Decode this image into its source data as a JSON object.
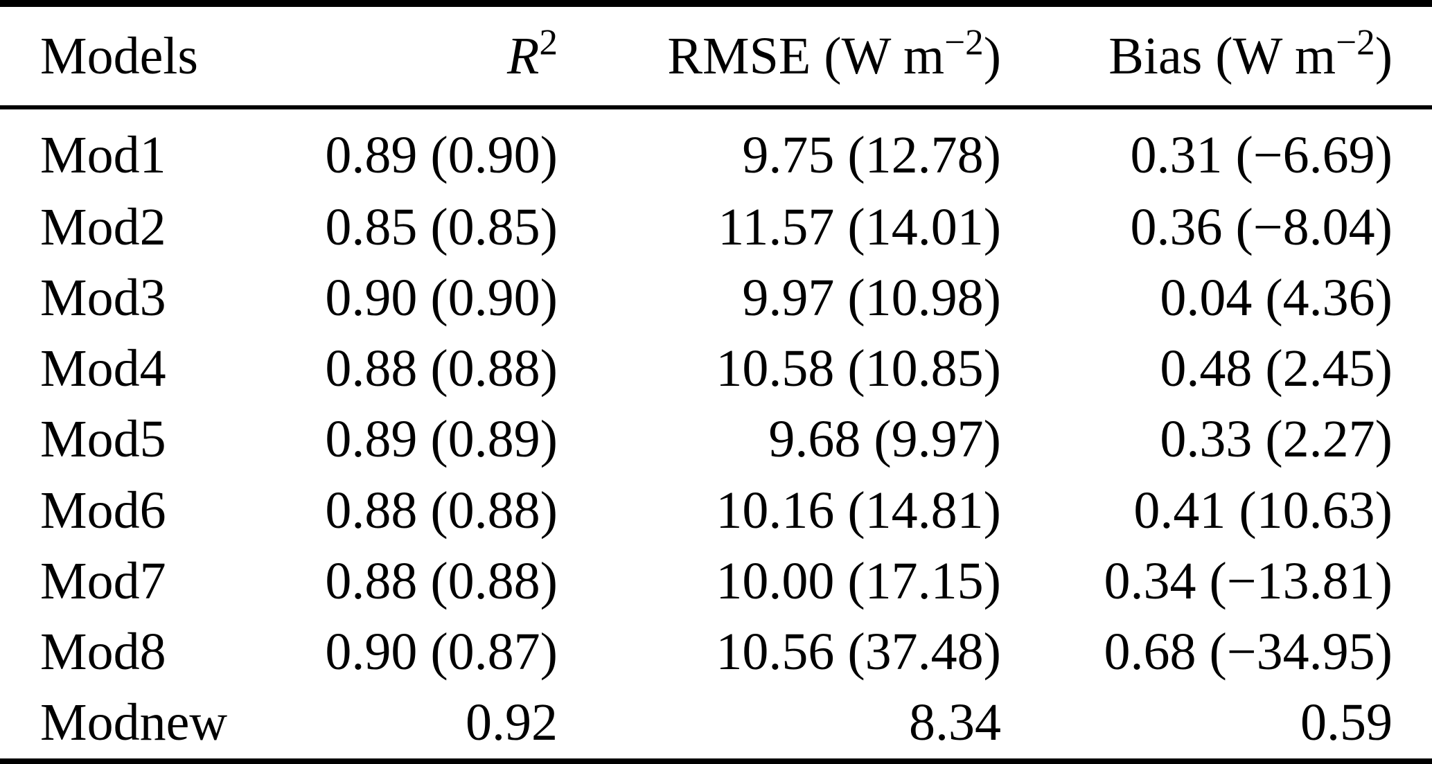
{
  "meta": {
    "kind": "paper-table",
    "colors": {
      "background": "#ffffff",
      "text": "#000000",
      "rule": "#000000"
    }
  },
  "table": {
    "columns": [
      {
        "id": "models",
        "label": "Models"
      },
      {
        "id": "r2",
        "label_base": "R",
        "label_sup": "2"
      },
      {
        "id": "rmse",
        "label_pre": "RMSE (W m",
        "label_sup": "−2",
        "label_post": ")"
      },
      {
        "id": "bias",
        "label_pre": "Bias (W m",
        "label_sup": "−2",
        "label_post": ")"
      }
    ],
    "rows": [
      {
        "model": "Mod1",
        "r2": "0.89 (0.90)",
        "rmse": "9.75 (12.78)",
        "bias": "0.31 (−6.69)"
      },
      {
        "model": "Mod2",
        "r2": "0.85 (0.85)",
        "rmse": "11.57 (14.01)",
        "bias": "0.36 (−8.04)"
      },
      {
        "model": "Mod3",
        "r2": "0.90 (0.90)",
        "rmse": "9.97 (10.98)",
        "bias": "0.04 (4.36)"
      },
      {
        "model": "Mod4",
        "r2": "0.88 (0.88)",
        "rmse": "10.58 (10.85)",
        "bias": "0.48 (2.45)"
      },
      {
        "model": "Mod5",
        "r2": "0.89 (0.89)",
        "rmse": "9.68 (9.97)",
        "bias": "0.33 (2.27)"
      },
      {
        "model": "Mod6",
        "r2": "0.88 (0.88)",
        "rmse": "10.16 (14.81)",
        "bias": "0.41 (10.63)"
      },
      {
        "model": "Mod7",
        "r2": "0.88 (0.88)",
        "rmse": "10.00 (17.15)",
        "bias": "0.34 (−13.81)"
      },
      {
        "model": "Mod8",
        "r2": "0.90 (0.87)",
        "rmse": "10.56 (37.48)",
        "bias": "0.68 (−34.95)"
      },
      {
        "model": "Modnew",
        "r2": "0.92",
        "rmse": "8.34",
        "bias": "0.59"
      }
    ]
  }
}
